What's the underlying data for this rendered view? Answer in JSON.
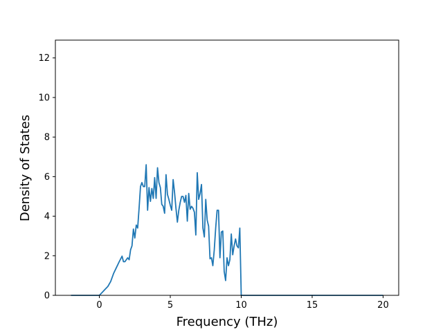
{
  "chart_data": {
    "type": "line",
    "title": "",
    "xlabel": "Frequency (THz)",
    "ylabel": "Density of States",
    "xlim": [
      -3.1,
      21.1
    ],
    "ylim": [
      0,
      12.9
    ],
    "xticks": [
      0,
      5,
      10,
      15,
      20
    ],
    "yticks": [
      0,
      2,
      4,
      6,
      8,
      10,
      12
    ],
    "grid": false,
    "legend": "none",
    "line_color": "#1f77b4",
    "series": [
      {
        "x": [
          -2.0,
          -1.0,
          0.0,
          0.2,
          0.4,
          0.6,
          0.8,
          1.0,
          1.2,
          1.4,
          1.6,
          1.7,
          1.8,
          2.0,
          2.1,
          2.2,
          2.3,
          2.4,
          2.5,
          2.6,
          2.7,
          2.8,
          2.9,
          3.0,
          3.1,
          3.2,
          3.3,
          3.4,
          3.5,
          3.6,
          3.7,
          3.8,
          3.9,
          4.0,
          4.1,
          4.2,
          4.3,
          4.4,
          4.5,
          4.6,
          4.7,
          4.8,
          4.9,
          5.0,
          5.1,
          5.2,
          5.3,
          5.4,
          5.5,
          5.6,
          5.7,
          5.8,
          5.9,
          6.0,
          6.1,
          6.2,
          6.3,
          6.4,
          6.5,
          6.6,
          6.7,
          6.8,
          6.9,
          7.0,
          7.1,
          7.2,
          7.3,
          7.4,
          7.5,
          7.6,
          7.7,
          7.8,
          7.9,
          8.0,
          8.1,
          8.2,
          8.3,
          8.4,
          8.5,
          8.6,
          8.7,
          8.8,
          8.9,
          9.0,
          9.1,
          9.2,
          9.3,
          9.4,
          9.5,
          9.6,
          9.7,
          9.8,
          9.9,
          10.0,
          10.1,
          10.2,
          10.3,
          10.4,
          10.5,
          10.6,
          10.7,
          10.8,
          10.9,
          11.0,
          11.1,
          11.2,
          11.3,
          11.4,
          11.5,
          12.0,
          12.9,
          13.0,
          13.2,
          13.3,
          13.5,
          13.7,
          14.0,
          16.3,
          16.5,
          16.7,
          17.5,
          17.9,
          18.1,
          18.3,
          18.5,
          20.0
        ],
        "y": [
          0,
          0,
          0,
          0.15,
          0.3,
          0.45,
          0.7,
          1.1,
          1.4,
          1.7,
          1.98,
          1.7,
          1.7,
          1.9,
          1.8,
          2.3,
          2.5,
          3.35,
          2.9,
          3.55,
          3.4,
          4.4,
          5.5,
          5.7,
          5.5,
          5.5,
          6.6,
          4.3,
          5.45,
          4.75,
          5.4,
          4.9,
          5.95,
          4.9,
          6.45,
          5.7,
          5.45,
          4.6,
          4.5,
          4.15,
          6.1,
          5.1,
          4.85,
          4.55,
          4.3,
          5.85,
          5.2,
          4.4,
          3.7,
          4.3,
          4.7,
          5.0,
          5.0,
          4.7,
          5.05,
          3.75,
          5.15,
          4.35,
          4.5,
          4.4,
          4.2,
          3.05,
          6.2,
          4.85,
          5.15,
          5.6,
          3.4,
          2.95,
          4.85,
          3.8,
          3.5,
          1.85,
          1.9,
          1.5,
          2.3,
          3.4,
          4.3,
          4.3,
          1.9,
          3.2,
          3.25,
          1.2,
          0.75,
          1.9,
          1.5,
          1.8,
          3.1,
          2.05,
          2.5,
          2.85,
          2.5,
          2.4,
          3.4,
          0,
          0,
          0,
          0,
          0,
          0,
          0,
          0,
          0,
          0,
          0,
          0,
          0,
          0,
          0,
          0,
          0,
          0,
          0,
          0,
          0,
          0,
          0,
          0,
          0,
          0,
          0,
          0,
          0,
          0,
          0,
          0,
          0
        ]
      }
    ]
  }
}
